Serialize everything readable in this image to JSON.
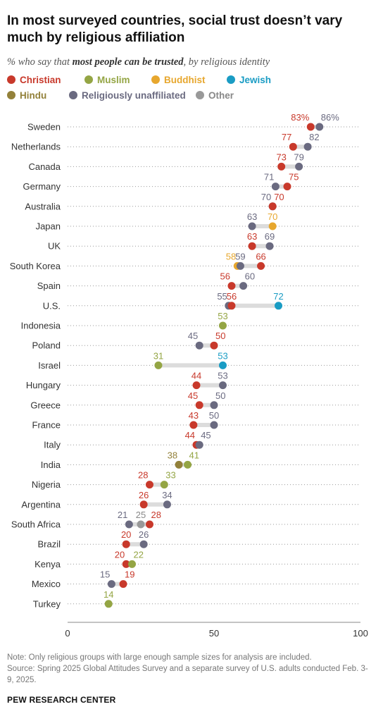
{
  "header": {
    "title": "In most surveyed countries, social trust doesn’t vary much by religious affiliation",
    "subtitle_pre": "% who say that ",
    "subtitle_bold": "most people can be trusted",
    "subtitle_post": ", by religious identity"
  },
  "colors": {
    "Christian": "#c8392b",
    "Muslim": "#94a544",
    "Buddhist": "#e7a72e",
    "Jewish": "#1a9cc4",
    "Hindu": "#93813a",
    "Religiously unaffiliated": "#6a6a80",
    "Other": "#999999"
  },
  "legend": [
    {
      "name": "Christian",
      "color": "#c8392b",
      "text_color": "#c8392b"
    },
    {
      "name": "Muslim",
      "color": "#94a544",
      "text_color": "#94a544"
    },
    {
      "name": "Buddhist",
      "color": "#e7a72e",
      "text_color": "#e7a72e"
    },
    {
      "name": "Jewish",
      "color": "#1a9cc4",
      "text_color": "#1a9cc4"
    },
    {
      "name": "Hindu",
      "color": "#93813a",
      "text_color": "#93813a"
    },
    {
      "name": "Religiously unaffiliated",
      "color": "#6a6a80",
      "text_color": "#6a6a80"
    },
    {
      "name": "Other",
      "color": "#999999",
      "text_color": "#888888"
    }
  ],
  "chart_data": {
    "type": "scatter",
    "xlim": [
      0,
      100
    ],
    "xticks": [
      "0",
      "50",
      "100"
    ],
    "countries": [
      {
        "country": "Sweden",
        "values": [
          {
            "group": "Christian",
            "value": 83,
            "label": "83%"
          },
          {
            "group": "Religiously unaffiliated",
            "value": 86,
            "label": "86%"
          }
        ]
      },
      {
        "country": "Netherlands",
        "values": [
          {
            "group": "Christian",
            "value": 77,
            "label": "77"
          },
          {
            "group": "Religiously unaffiliated",
            "value": 82,
            "label": "82"
          }
        ]
      },
      {
        "country": "Canada",
        "values": [
          {
            "group": "Christian",
            "value": 73,
            "label": "73"
          },
          {
            "group": "Religiously unaffiliated",
            "value": 79,
            "label": "79"
          }
        ]
      },
      {
        "country": "Germany",
        "values": [
          {
            "group": "Religiously unaffiliated",
            "value": 71,
            "label": "71"
          },
          {
            "group": "Christian",
            "value": 75,
            "label": "75"
          }
        ]
      },
      {
        "country": "Australia",
        "values": [
          {
            "group": "Religiously unaffiliated",
            "value": 70,
            "label": "70"
          },
          {
            "group": "Christian",
            "value": 70,
            "label": "70"
          }
        ]
      },
      {
        "country": "Japan",
        "values": [
          {
            "group": "Religiously unaffiliated",
            "value": 63,
            "label": "63"
          },
          {
            "group": "Buddhist",
            "value": 70,
            "label": "70"
          }
        ]
      },
      {
        "country": "UK",
        "values": [
          {
            "group": "Christian",
            "value": 63,
            "label": "63"
          },
          {
            "group": "Religiously unaffiliated",
            "value": 69,
            "label": "69"
          }
        ]
      },
      {
        "country": "South Korea",
        "values": [
          {
            "group": "Buddhist",
            "value": 58,
            "label": "58"
          },
          {
            "group": "Religiously unaffiliated",
            "value": 59,
            "label": "59"
          },
          {
            "group": "Christian",
            "value": 66,
            "label": "66"
          }
        ]
      },
      {
        "country": "Spain",
        "values": [
          {
            "group": "Christian",
            "value": 56,
            "label": "56"
          },
          {
            "group": "Religiously unaffiliated",
            "value": 60,
            "label": "60"
          }
        ]
      },
      {
        "country": "U.S.",
        "values": [
          {
            "group": "Religiously unaffiliated",
            "value": 55,
            "label": "55"
          },
          {
            "group": "Christian",
            "value": 56,
            "label": "56"
          },
          {
            "group": "Jewish",
            "value": 72,
            "label": "72"
          }
        ]
      },
      {
        "country": "Indonesia",
        "values": [
          {
            "group": "Muslim",
            "value": 53,
            "label": "53"
          }
        ]
      },
      {
        "country": "Poland",
        "values": [
          {
            "group": "Religiously unaffiliated",
            "value": 45,
            "label": "45"
          },
          {
            "group": "Christian",
            "value": 50,
            "label": "50"
          }
        ]
      },
      {
        "country": "Israel",
        "values": [
          {
            "group": "Muslim",
            "value": 31,
            "label": "31"
          },
          {
            "group": "Jewish",
            "value": 53,
            "label": "53"
          }
        ]
      },
      {
        "country": "Hungary",
        "values": [
          {
            "group": "Christian",
            "value": 44,
            "label": "44"
          },
          {
            "group": "Religiously unaffiliated",
            "value": 53,
            "label": "53"
          }
        ]
      },
      {
        "country": "Greece",
        "values": [
          {
            "group": "Christian",
            "value": 45,
            "label": "45"
          },
          {
            "group": "Religiously unaffiliated",
            "value": 50,
            "label": "50"
          }
        ]
      },
      {
        "country": "France",
        "values": [
          {
            "group": "Christian",
            "value": 43,
            "label": "43"
          },
          {
            "group": "Religiously unaffiliated",
            "value": 50,
            "label": "50"
          }
        ]
      },
      {
        "country": "Italy",
        "values": [
          {
            "group": "Christian",
            "value": 44,
            "label": "44"
          },
          {
            "group": "Religiously unaffiliated",
            "value": 45,
            "label": "45"
          }
        ]
      },
      {
        "country": "India",
        "values": [
          {
            "group": "Hindu",
            "value": 38,
            "label": "38"
          },
          {
            "group": "Muslim",
            "value": 41,
            "label": "41"
          }
        ]
      },
      {
        "country": "Nigeria",
        "values": [
          {
            "group": "Christian",
            "value": 28,
            "label": "28"
          },
          {
            "group": "Muslim",
            "value": 33,
            "label": "33"
          }
        ]
      },
      {
        "country": "Argentina",
        "values": [
          {
            "group": "Christian",
            "value": 26,
            "label": "26"
          },
          {
            "group": "Religiously unaffiliated",
            "value": 34,
            "label": "34"
          }
        ]
      },
      {
        "country": "South Africa",
        "values": [
          {
            "group": "Religiously unaffiliated",
            "value": 21,
            "label": "21"
          },
          {
            "group": "Other",
            "value": 25,
            "label": "25"
          },
          {
            "group": "Christian",
            "value": 28,
            "label": "28"
          }
        ]
      },
      {
        "country": "Brazil",
        "values": [
          {
            "group": "Christian",
            "value": 20,
            "label": "20"
          },
          {
            "group": "Religiously unaffiliated",
            "value": 26,
            "label": "26"
          }
        ]
      },
      {
        "country": "Kenya",
        "values": [
          {
            "group": "Christian",
            "value": 20,
            "label": "20"
          },
          {
            "group": "Muslim",
            "value": 22,
            "label": "22"
          }
        ]
      },
      {
        "country": "Mexico",
        "values": [
          {
            "group": "Religiously unaffiliated",
            "value": 15,
            "label": "15"
          },
          {
            "group": "Christian",
            "value": 19,
            "label": "19"
          }
        ]
      },
      {
        "country": "Turkey",
        "values": [
          {
            "group": "Muslim",
            "value": 14,
            "label": "14"
          }
        ]
      }
    ]
  },
  "footer": {
    "note": "Note: Only religious groups with large enough sample sizes for analysis are included.",
    "source": "Source: Spring 2025 Global Attitudes Survey and a separate survey of U.S. adults conducted Feb. 3-9, 2025.",
    "brand": "PEW RESEARCH CENTER"
  }
}
